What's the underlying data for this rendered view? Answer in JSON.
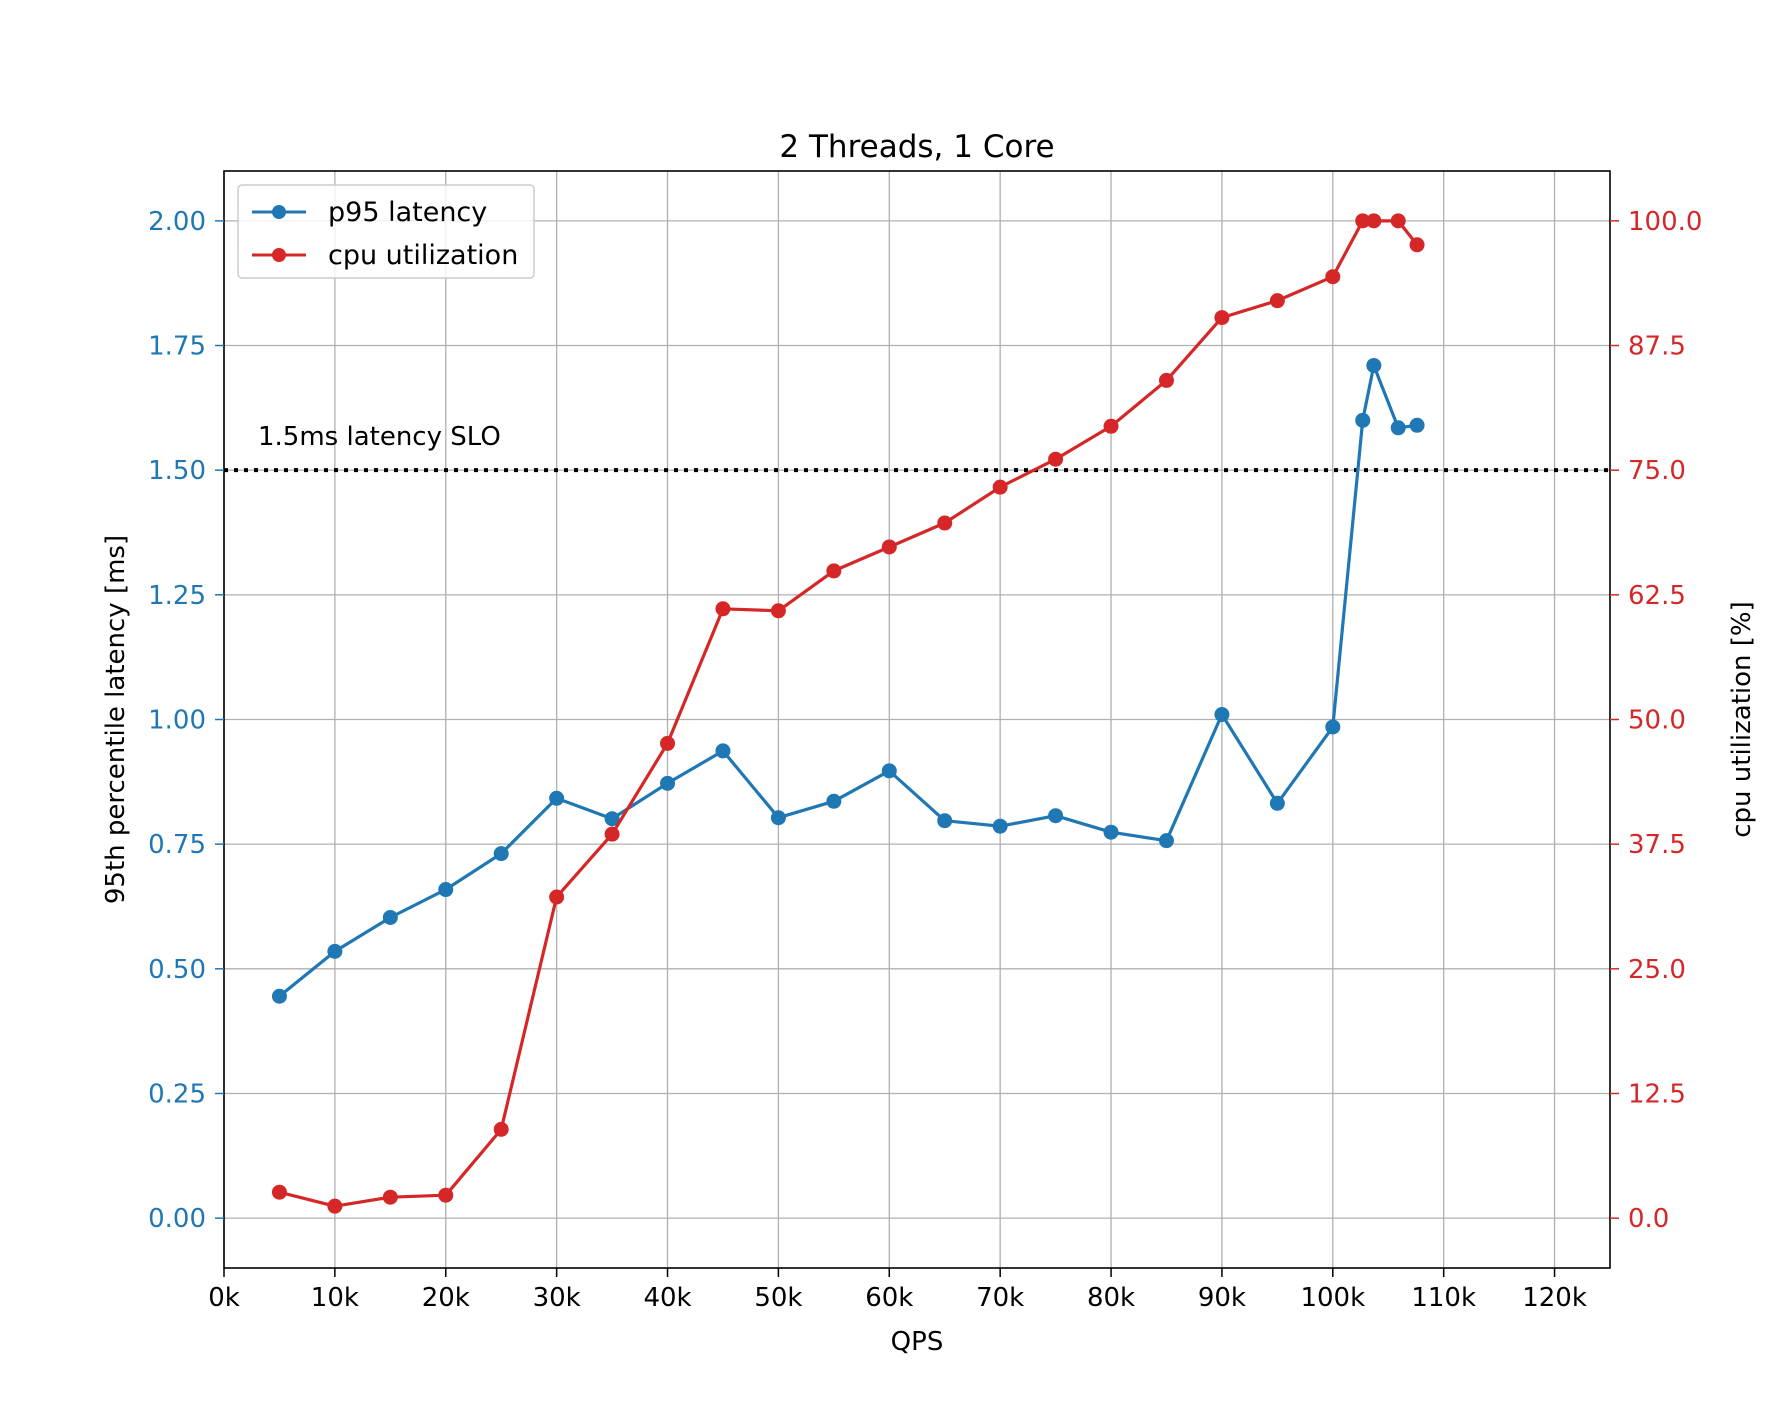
{
  "chart_data": {
    "type": "line",
    "title": "2 Threads, 1 Core",
    "xlabel": "QPS",
    "ylabel": "95th percentile latency [ms]",
    "y2label": "cpu utilization [%]",
    "xlim": [
      0,
      125000
    ],
    "ylim": [
      -0.1,
      2.1
    ],
    "y2lim": [
      -5,
      105
    ],
    "x_ticks": [
      0,
      10000,
      20000,
      30000,
      40000,
      50000,
      60000,
      70000,
      80000,
      90000,
      100000,
      110000,
      120000
    ],
    "x_tick_labels": [
      "0k",
      "10k",
      "20k",
      "30k",
      "40k",
      "50k",
      "60k",
      "70k",
      "80k",
      "90k",
      "100k",
      "110k",
      "120k"
    ],
    "y_ticks": [
      0.0,
      0.25,
      0.5,
      0.75,
      1.0,
      1.25,
      1.5,
      1.75,
      2.0
    ],
    "y_tick_labels": [
      "0.00",
      "0.25",
      "0.50",
      "0.75",
      "1.00",
      "1.25",
      "1.50",
      "1.75",
      "2.00"
    ],
    "y2_ticks": [
      0.0,
      12.5,
      25.0,
      37.5,
      50.0,
      62.5,
      75.0,
      87.5,
      100.0
    ],
    "y2_tick_labels": [
      "0.0",
      "12.5",
      "25.0",
      "37.5",
      "50.0",
      "62.5",
      "75.0",
      "87.5",
      "100.0"
    ],
    "grid": true,
    "legend_position": "top-left",
    "series": [
      {
        "name": "p95 latency",
        "axis": "left",
        "color": "#1f77b4",
        "x": [
          5000,
          10000,
          15000,
          20000,
          25000,
          30000,
          35000,
          40000,
          45000,
          50000,
          55000,
          60000,
          65000,
          70000,
          75000,
          80000,
          85000,
          90000,
          95000,
          100000,
          102700,
          103700,
          105900,
          107600
        ],
        "values": [
          0.445,
          0.535,
          0.603,
          0.659,
          0.731,
          0.842,
          0.801,
          0.872,
          0.937,
          0.803,
          0.836,
          0.897,
          0.797,
          0.786,
          0.807,
          0.774,
          0.757,
          1.01,
          0.832,
          0.985,
          1.6,
          1.71,
          1.585,
          1.59
        ]
      },
      {
        "name": "cpu utilization",
        "axis": "right",
        "color": "#d62728",
        "x": [
          5000,
          10000,
          15000,
          20000,
          25000,
          30000,
          35000,
          40000,
          45000,
          50000,
          55000,
          60000,
          65000,
          70000,
          75000,
          80000,
          85000,
          90000,
          95000,
          100000,
          102700,
          103700,
          105900,
          107600
        ],
        "values": [
          2.6,
          1.2,
          2.1,
          2.3,
          8.9,
          32.2,
          38.5,
          47.6,
          61.1,
          60.9,
          64.9,
          67.3,
          69.7,
          73.3,
          76.1,
          79.4,
          84.0,
          90.3,
          92.0,
          94.4,
          100.0,
          100.0,
          100.0,
          97.6
        ]
      }
    ],
    "reference_line": {
      "y": 1.5,
      "style": "dotted",
      "color": "#000000",
      "label": "1.5ms latency SLO"
    }
  }
}
